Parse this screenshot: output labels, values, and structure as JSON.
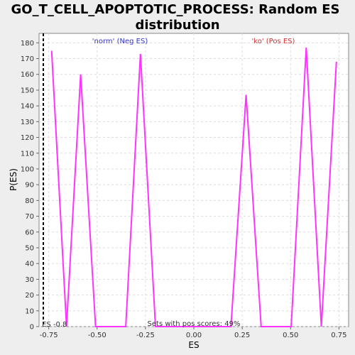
{
  "chart_data": {
    "type": "line",
    "title_lines": [
      "GO_T_CELL_APOPTOTIC_PROCESS: Random ES",
      "distribution"
    ],
    "xlabel": "ES",
    "ylabel": "P(ES)",
    "xlim": [
      -0.8,
      0.8
    ],
    "ylim": [
      0,
      186
    ],
    "x_ticks": [
      -0.75,
      -0.5,
      -0.25,
      0.0,
      0.25,
      0.5,
      0.75
    ],
    "x_tick_labels": [
      "-0.75",
      "-0.50",
      "-0.25",
      "0.00",
      "0.25",
      "0.50",
      "0.75"
    ],
    "y_ticks": [
      0,
      10,
      20,
      30,
      40,
      50,
      60,
      70,
      80,
      90,
      100,
      110,
      120,
      130,
      140,
      150,
      160,
      170,
      180
    ],
    "grid": true,
    "series": [
      {
        "color": "#ff33ff",
        "x": [
          -0.735,
          -0.658,
          -0.585,
          -0.508,
          -0.43,
          -0.352,
          -0.276,
          -0.198,
          -0.12,
          -0.042,
          0.036,
          0.114,
          0.192,
          0.27,
          0.348,
          0.426,
          0.503,
          0.581,
          0.659,
          0.737
        ],
        "y": [
          175,
          0,
          160,
          0,
          0,
          0,
          173,
          0,
          0,
          0,
          0,
          0,
          0,
          147,
          0,
          0,
          0,
          177,
          0,
          168
        ]
      }
    ],
    "vline": {
      "x": -0.778,
      "style": "dashed",
      "color": "#000000"
    },
    "annotations": {
      "neg_label": "'norm' (Neg ES)",
      "pos_label": "'ko' (Pos ES)",
      "es_label": "ES -0.8",
      "sets_label": "Sets with pos scores: 49%",
      "neg_color": "#3333cc",
      "pos_color": "#cc3333"
    }
  }
}
